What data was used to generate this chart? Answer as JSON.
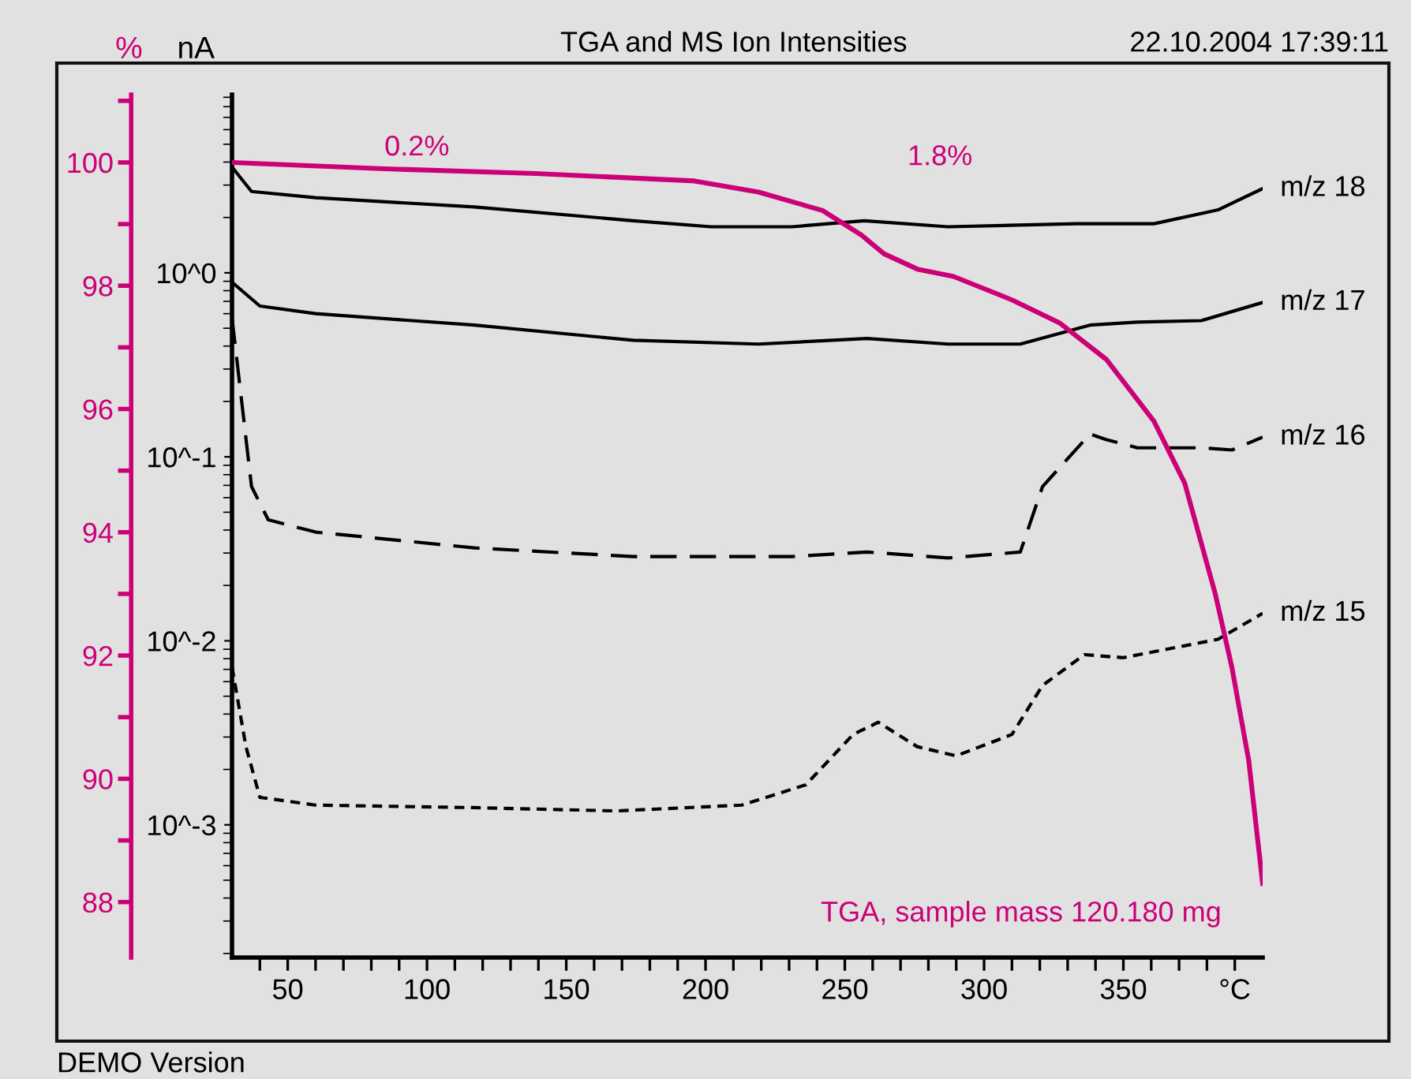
{
  "chart_data": {
    "type": "line",
    "title": "TGA and MS Ion Intensities",
    "ylabel": "%",
    "y2label": "nA",
    "log": "y2",
    "legend": false,
    "grid": false,
    "xlim": [
      30,
      400
    ],
    "ylim": [
      87.1,
      101.1
    ],
    "y2lim": [
      0.00019,
      9.3
    ],
    "xticks": [
      {
        "value": 40,
        "label": null
      },
      50,
      {
        "value": 60,
        "label": null
      },
      {
        "value": 70,
        "label": null
      },
      {
        "value": 80,
        "label": null
      },
      {
        "value": 90,
        "label": null
      },
      100,
      {
        "value": 110,
        "label": null
      },
      {
        "value": 120,
        "label": null
      },
      {
        "value": 130,
        "label": null
      },
      {
        "value": 140,
        "label": null
      },
      150,
      {
        "value": 160,
        "label": null
      },
      {
        "value": 170,
        "label": null
      },
      {
        "value": 180,
        "label": null
      },
      {
        "value": 190,
        "label": null
      },
      200,
      {
        "value": 210,
        "label": null
      },
      {
        "value": 220,
        "label": null
      },
      {
        "value": 230,
        "label": null
      },
      {
        "value": 240,
        "label": null
      },
      250,
      {
        "value": 260,
        "label": null
      },
      {
        "value": 270,
        "label": null
      },
      {
        "value": 280,
        "label": null
      },
      {
        "value": 290,
        "label": null
      },
      300,
      {
        "value": 310,
        "label": null
      },
      {
        "value": 320,
        "label": null
      },
      {
        "value": 330,
        "label": null
      },
      {
        "value": 340,
        "label": null
      },
      350,
      {
        "value": 360,
        "label": null
      },
      {
        "value": 370,
        "label": null
      },
      {
        "value": 380,
        "label": null
      },
      {
        "value": 390,
        "label": "°C"
      }
    ],
    "yticks": [
      88,
      {
        "value": 89,
        "label": null
      },
      90,
      {
        "value": 91,
        "label": null
      },
      92,
      {
        "value": 93,
        "label": null
      },
      94,
      {
        "value": 95,
        "label": null
      },
      96,
      {
        "value": 97,
        "label": null
      },
      98,
      {
        "value": 99,
        "label": null
      },
      100,
      {
        "value": 101,
        "label": null
      }
    ],
    "y2ticks": [
      {
        "value": 0.001,
        "label": "10^-3"
      },
      {
        "value": 0.01,
        "label": "10^-2"
      },
      {
        "value": 0.1,
        "label": "10^-1"
      },
      {
        "value": 1,
        "label": "10^0"
      }
    ],
    "annotations": [
      "22.10.2004 17:39:11",
      "DEMO Version",
      {
        "text": "0.2%",
        "x": 80,
        "y": 99.9
      },
      "1.8%"
    ],
    "series": [
      {
        "name": "TGA, sample mass 120.180 mg",
        "color": "#cc0077",
        "line_style": "solid",
        "x": [
          30,
          83,
          139,
          196,
          219,
          242,
          256,
          264,
          276,
          289,
          310,
          327,
          344,
          361,
          372,
          383,
          389,
          395,
          400
        ],
        "values": [
          100.0,
          99.9,
          99.82,
          99.7,
          99.52,
          99.22,
          98.82,
          98.52,
          98.27,
          98.15,
          97.77,
          97.4,
          96.8,
          95.8,
          94.8,
          93.0,
          91.8,
          90.3,
          88.3
        ]
      },
      {
        "name": "m/z 18",
        "axis": "y2",
        "color": "#000000",
        "line_style": "solid",
        "x": [
          30,
          37,
          60,
          117,
          174,
          202,
          231,
          257,
          287,
          333,
          361,
          384,
          400
        ],
        "values": [
          3.76,
          2.77,
          2.56,
          2.28,
          1.92,
          1.78,
          1.78,
          1.92,
          1.78,
          1.85,
          1.85,
          2.2,
          2.87
        ]
      },
      {
        "name": "m/z 17",
        "axis": "y2",
        "color": "#000000",
        "line_style": "solid",
        "x": [
          30,
          40,
          60,
          117,
          174,
          219,
          258,
          287,
          313,
          338,
          355,
          378,
          400
        ],
        "values": [
          0.89,
          0.66,
          0.6,
          0.52,
          0.43,
          0.41,
          0.44,
          0.41,
          0.41,
          0.52,
          0.54,
          0.55,
          0.69
        ]
      },
      {
        "name": "m/z 16",
        "axis": "y2",
        "color": "#000000",
        "line_style": "dashed",
        "x": [
          30,
          37,
          43,
          60,
          117,
          174,
          231,
          258,
          287,
          313,
          321,
          338,
          344,
          355,
          378,
          389,
          400
        ],
        "values": [
          0.57,
          0.069,
          0.0455,
          0.039,
          0.032,
          0.0287,
          0.0287,
          0.0304,
          0.0282,
          0.0304,
          0.069,
          0.133,
          0.124,
          0.112,
          0.112,
          0.109,
          0.128
        ]
      },
      {
        "name": "m/z 15",
        "axis": "y2",
        "color": "#000000",
        "line_style": "dotted",
        "x": [
          30,
          35,
          40,
          60,
          117,
          168,
          213,
          236,
          253,
          262,
          276,
          290,
          310,
          321,
          336,
          350,
          384,
          400
        ],
        "values": [
          0.00722,
          0.00266,
          0.00141,
          0.00128,
          0.00124,
          0.00119,
          0.00128,
          0.00165,
          0.0031,
          0.00361,
          0.00266,
          0.00237,
          0.0031,
          0.00573,
          0.00841,
          0.0081,
          0.0102,
          0.0141
        ]
      }
    ]
  }
}
